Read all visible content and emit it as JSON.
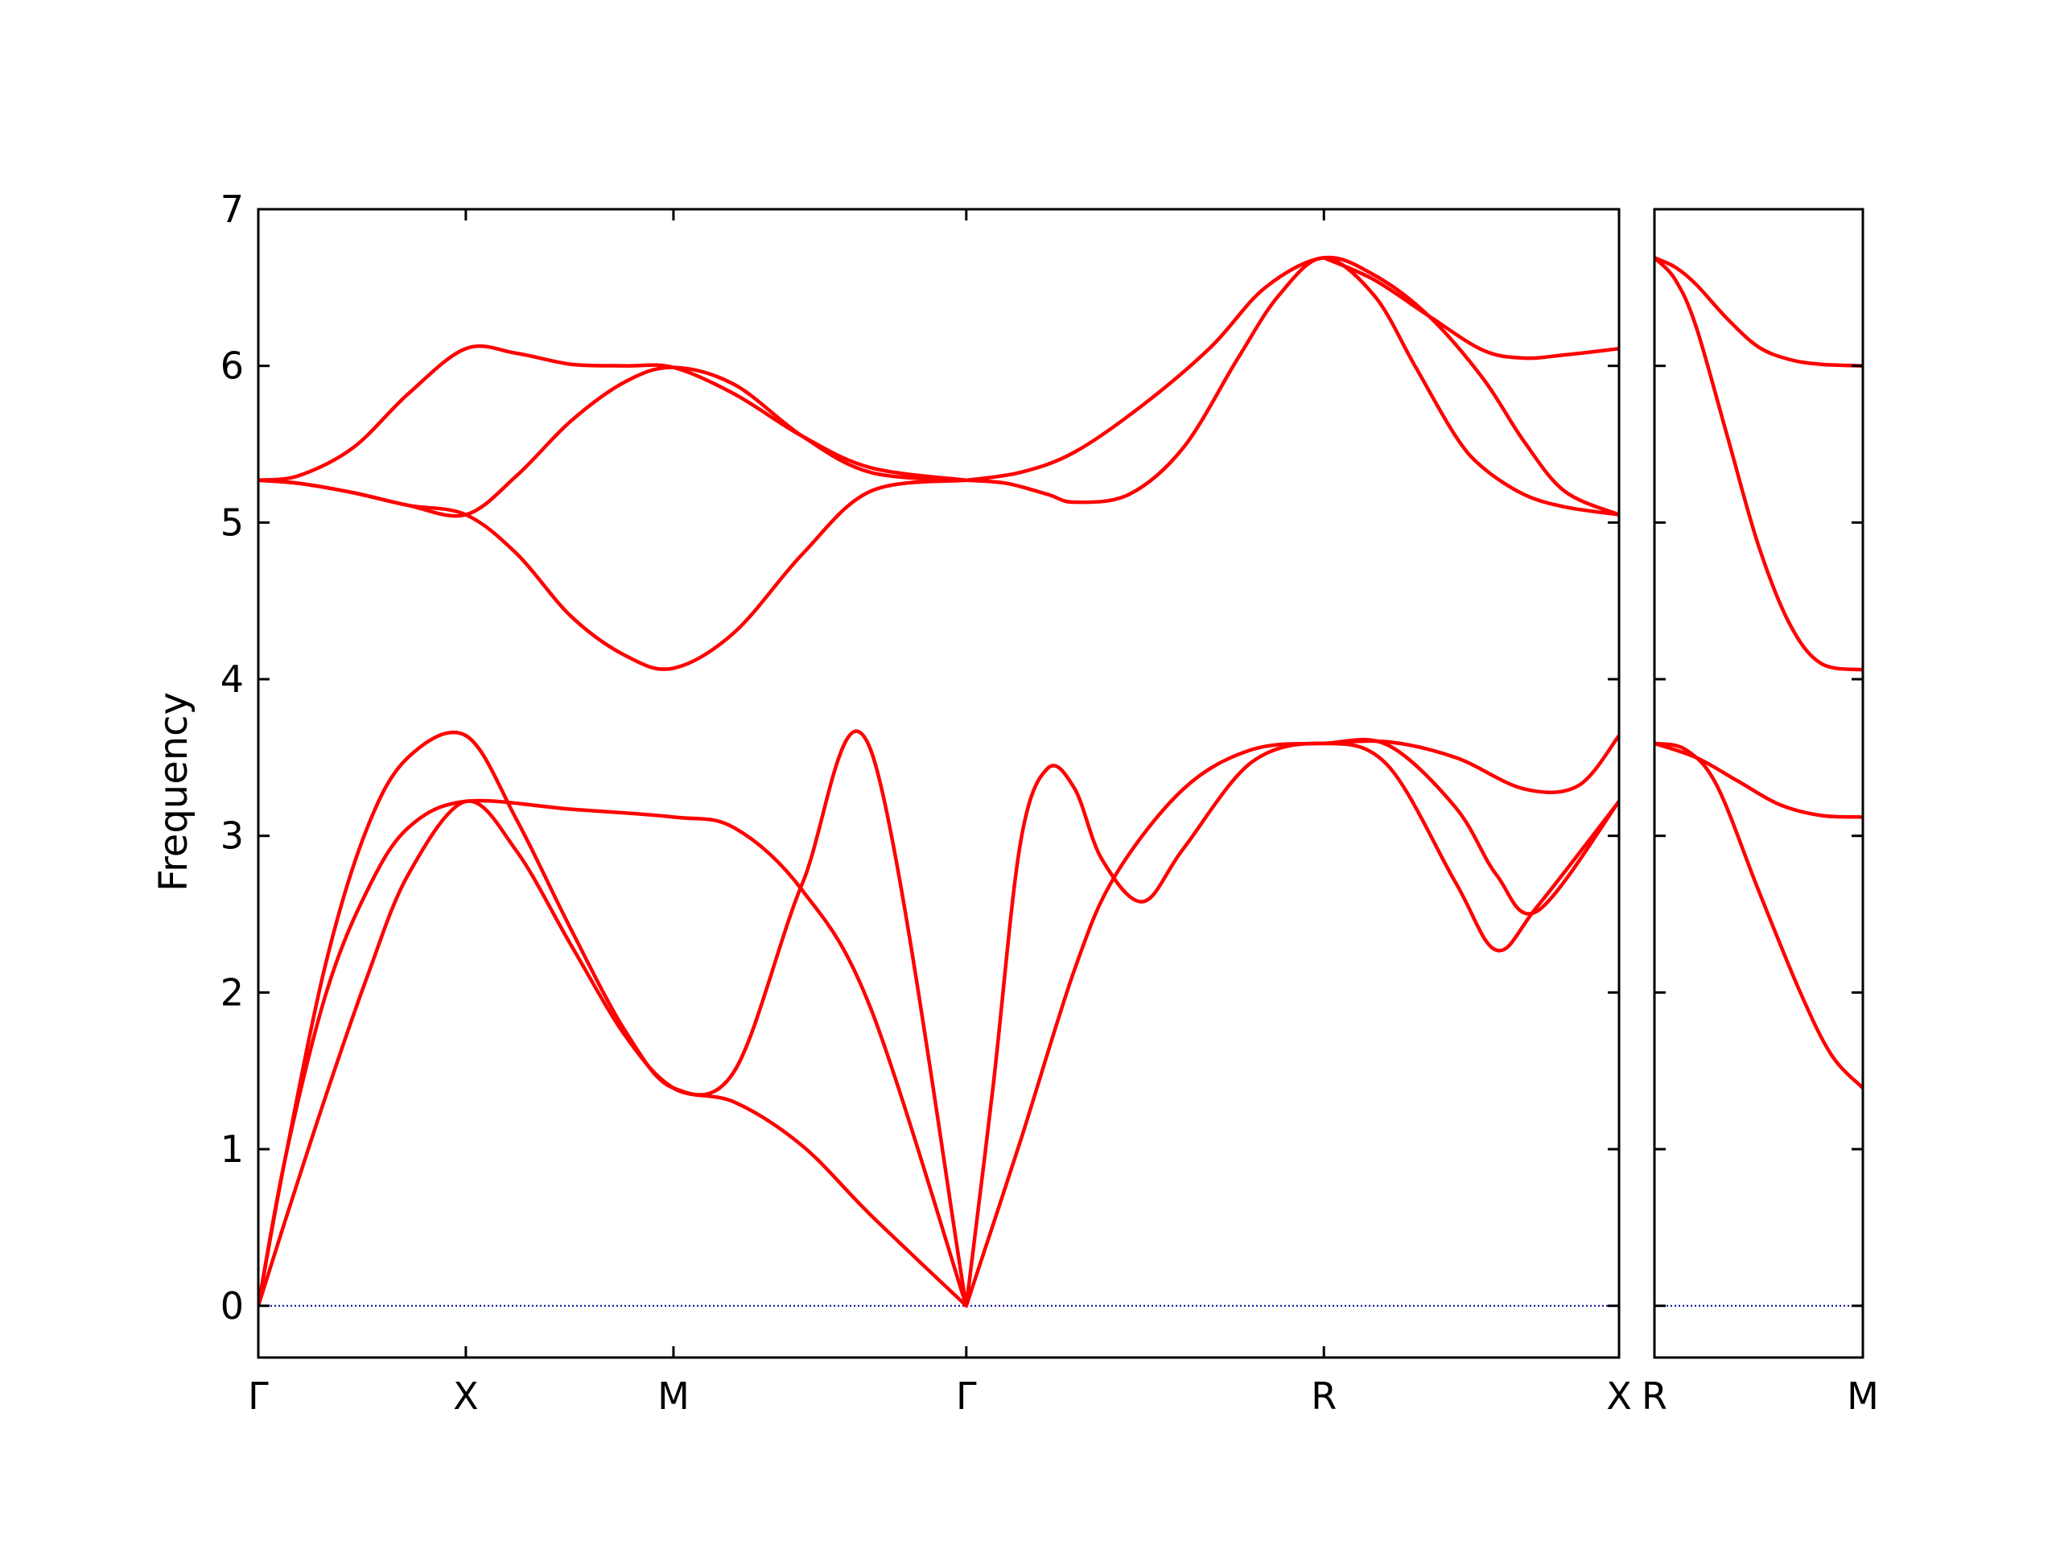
{
  "chart_data": {
    "type": "line",
    "ylabel": "Frequency",
    "ylim": [
      -0.33,
      7
    ],
    "yticks": [
      0,
      1,
      2,
      3,
      4,
      5,
      6,
      7
    ],
    "grid": false,
    "colors": {
      "bands": "#ff0000",
      "zero_line": "#0000aa",
      "axes": "#000000"
    },
    "panels": [
      {
        "xrange": [
          0,
          1
        ],
        "xtick_positions": [
          0,
          0.1525,
          0.3051,
          0.5203,
          0.7831,
          1
        ],
        "xtick_labels": [
          "Γ",
          "X",
          "M",
          "Γ",
          "R",
          "X"
        ],
        "bands": [
          {
            "x": [
              0,
              0.02,
              0.05,
              0.08,
              0.11,
              0.1525,
              0.19,
              0.23,
              0.27,
              0.3051,
              0.35,
              0.4,
              0.45,
              0.5203
            ],
            "y": [
              0,
              0.55,
              1.35,
              2.1,
              2.75,
              3.22,
              2.9,
              2.3,
              1.72,
              1.39,
              1.3,
              1.02,
              0.58,
              0
            ]
          },
          {
            "x": [
              0,
              0.02,
              0.05,
              0.08,
              0.11,
              0.1525,
              0.19,
              0.23,
              0.27,
              0.3051,
              0.35,
              0.4,
              0.45,
              0.5203
            ],
            "y": [
              0,
              0.95,
              2.2,
              3.05,
              3.5,
              3.64,
              3.1,
              2.4,
              1.75,
              1.39,
              1.5,
              2.7,
              3.55,
              0
            ]
          },
          {
            "x": [
              0,
              0.02,
              0.05,
              0.08,
              0.11,
              0.1525,
              0.23,
              0.3051,
              0.35,
              0.4,
              0.45,
              0.5203
            ],
            "y": [
              0,
              0.95,
              2.0,
              2.65,
              3.05,
              3.22,
              3.17,
              3.12,
              3.05,
              2.65,
              1.9,
              0
            ]
          },
          {
            "x": [
              0.5203,
              0.56,
              0.6,
              0.63,
              0.68,
              0.73,
              0.7831,
              0.83,
              0.88,
              0.91,
              0.94,
              1
            ],
            "y": [
              0,
              1.05,
              2.15,
              2.75,
              3.3,
              3.55,
              3.59,
              3.58,
              3.18,
              2.75,
              2.52,
              3.22
            ]
          },
          {
            "x": [
              0.5203,
              0.54,
              0.56,
              0.58,
              0.6,
              0.62,
              0.65,
              0.68,
              0.73,
              0.7831,
              0.83,
              0.88,
              0.91,
              0.94,
              1
            ],
            "y": [
              0,
              1.4,
              2.95,
              3.43,
              3.3,
              2.85,
              2.58,
              2.92,
              3.47,
              3.59,
              3.45,
              2.7,
              2.27,
              2.55,
              3.22
            ]
          },
          {
            "x": [
              0.7831,
              0.83,
              0.88,
              0.93,
              0.97,
              1
            ],
            "y": [
              3.59,
              3.6,
              3.5,
              3.3,
              3.32,
              3.64
            ]
          },
          {
            "x": [
              0,
              0.03,
              0.07,
              0.11,
              0.1525,
              0.19,
              0.23,
              0.27,
              0.3051,
              0.35,
              0.4,
              0.45,
              0.5203
            ],
            "y": [
              5.27,
              5.3,
              5.48,
              5.82,
              6.11,
              6.08,
              6.01,
              6.0,
              5.99,
              5.82,
              5.55,
              5.35,
              5.27
            ]
          },
          {
            "x": [
              0,
              0.03,
              0.07,
              0.11,
              0.1525,
              0.19,
              0.23,
              0.27,
              0.3051,
              0.35,
              0.4,
              0.45,
              0.5203
            ],
            "y": [
              5.27,
              5.25,
              5.19,
              5.11,
              5.05,
              5.3,
              5.65,
              5.9,
              5.99,
              5.88,
              5.55,
              5.32,
              5.27
            ]
          },
          {
            "x": [
              0,
              0.03,
              0.07,
              0.11,
              0.1525,
              0.19,
              0.23,
              0.27,
              0.3051,
              0.35,
              0.4,
              0.45,
              0.5203
            ],
            "y": [
              5.27,
              5.25,
              5.19,
              5.11,
              5.05,
              4.8,
              4.4,
              4.15,
              4.07,
              4.3,
              4.8,
              5.2,
              5.27
            ]
          },
          {
            "x": [
              0.5203,
              0.56,
              0.6,
              0.65,
              0.7,
              0.74,
              0.7831,
              0.82,
              0.86,
              0.9,
              0.93,
              0.96,
              1
            ],
            "y": [
              5.27,
              5.32,
              5.45,
              5.75,
              6.12,
              6.5,
              6.69,
              6.58,
              6.32,
              5.92,
              5.52,
              5.2,
              5.05
            ]
          },
          {
            "x": [
              0.5203,
              0.55,
              0.58,
              0.6,
              0.64,
              0.68,
              0.72,
              0.75,
              0.7831,
              0.82,
              0.85,
              0.88,
              0.9,
              0.93,
              0.96,
              1
            ],
            "y": [
              5.27,
              5.25,
              5.18,
              5.13,
              5.18,
              5.48,
              6.05,
              6.45,
              6.69,
              6.45,
              6.0,
              5.55,
              5.35,
              5.18,
              5.1,
              5.05
            ]
          },
          {
            "x": [
              0.7831,
              0.82,
              0.86,
              0.9,
              0.93,
              0.96,
              1
            ],
            "y": [
              6.69,
              6.55,
              6.32,
              6.1,
              6.05,
              6.07,
              6.11
            ]
          }
        ]
      },
      {
        "xrange": [
          0,
          1
        ],
        "xtick_positions": [
          0,
          1
        ],
        "xtick_labels": [
          "R",
          "M"
        ],
        "bands": [
          {
            "x": [
              0,
              0.15,
              0.3,
              0.5,
              0.7,
              0.85,
              1
            ],
            "y": [
              3.59,
              3.55,
              3.32,
              2.65,
              2.0,
              1.6,
              1.39
            ]
          },
          {
            "x": [
              0,
              0.2,
              0.4,
              0.6,
              0.8,
              1
            ],
            "y": [
              3.59,
              3.5,
              3.35,
              3.2,
              3.13,
              3.12
            ]
          },
          {
            "x": [
              0,
              0.1,
              0.2,
              0.35,
              0.5,
              0.65,
              0.8,
              1
            ],
            "y": [
              6.69,
              6.55,
              6.25,
              5.55,
              4.85,
              4.35,
              4.1,
              4.06
            ]
          },
          {
            "x": [
              0,
              0.1,
              0.2,
              0.35,
              0.5,
              0.65,
              0.8,
              1
            ],
            "y": [
              6.69,
              6.63,
              6.52,
              6.3,
              6.12,
              6.04,
              6.01,
              6.0
            ]
          }
        ]
      }
    ]
  }
}
